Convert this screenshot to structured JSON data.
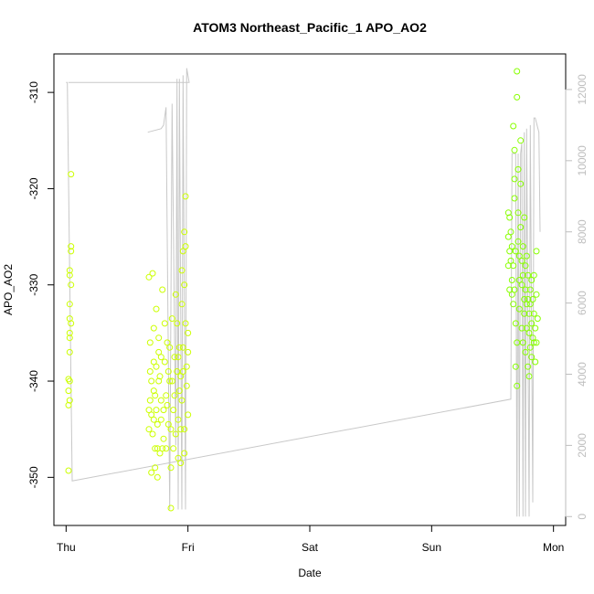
{
  "chart_data": {
    "type": "scatter",
    "title": "ATOM3 Northeast_Pacific_1 APO_AO2",
    "xlabel": "Date",
    "ylabel": "APO_AO2",
    "x_ticks": [
      "Thu",
      "Fri",
      "Sat",
      "Sun",
      "Mon"
    ],
    "x_tick_values": [
      0,
      1,
      2,
      3,
      4
    ],
    "xlim": [
      -0.1,
      4.1
    ],
    "ylim_left": [
      -355,
      -306
    ],
    "y_ticks_left": [
      -350,
      -340,
      -330,
      -320,
      -310
    ],
    "ylim_right": [
      -250,
      13000
    ],
    "y_ticks_right": [
      0,
      2000,
      4000,
      6000,
      8000,
      10000,
      12000
    ],
    "grid": false,
    "colors": {
      "line": "#c8c8c8",
      "right_axis": "#bebebe",
      "points_early": "#ccff00",
      "points_late": "#88ff00"
    },
    "altitude_line": [
      [
        0.0,
        12200
      ],
      [
        0.01,
        12200
      ],
      [
        0.05,
        1000
      ],
      [
        3.65,
        3300
      ],
      [
        3.66,
        10200
      ],
      [
        3.69,
        10200
      ],
      [
        3.7,
        0
      ],
      [
        3.71,
        10200
      ],
      [
        3.72,
        0
      ],
      [
        3.73,
        10200
      ],
      [
        3.74,
        10500
      ],
      [
        3.75,
        0
      ],
      [
        3.76,
        10800
      ],
      [
        3.77,
        0
      ],
      [
        3.78,
        10900
      ],
      [
        3.8,
        0
      ],
      [
        3.81,
        11000
      ],
      [
        3.83,
        400
      ],
      [
        3.84,
        11200
      ],
      [
        3.85,
        11200
      ],
      [
        3.88,
        10800
      ],
      [
        3.89,
        8000
      ]
    ],
    "altitude_line_fri": [
      [
        0.02,
        12200
      ],
      [
        1.0,
        12200
      ],
      [
        1.01,
        12200
      ],
      [
        0.99,
        12600
      ],
      [
        0.98,
        200
      ],
      [
        0.96,
        12400
      ],
      [
        0.95,
        200
      ],
      [
        0.93,
        12300
      ],
      [
        0.92,
        200
      ],
      [
        0.91,
        12300
      ],
      [
        0.9,
        2000
      ],
      [
        0.87,
        11600
      ],
      [
        0.85,
        200
      ],
      [
        0.82,
        11500
      ],
      [
        0.8,
        11000
      ],
      [
        0.78,
        10900
      ],
      [
        0.67,
        10800
      ]
    ],
    "series": [
      {
        "values": [
          [
            0.02,
            -339.8
          ],
          [
            0.02,
            -341.0
          ],
          [
            0.02,
            -342.5
          ],
          [
            0.03,
            -342.0
          ],
          [
            0.03,
            -337.0
          ],
          [
            0.03,
            -335.0
          ],
          [
            0.03,
            -333.5
          ],
          [
            0.03,
            -332.0
          ],
          [
            0.03,
            -329.0
          ],
          [
            0.03,
            -328.5
          ],
          [
            0.04,
            -326.5
          ],
          [
            0.04,
            -326.0
          ],
          [
            0.04,
            -330.0
          ],
          [
            0.04,
            -318.5
          ],
          [
            0.02,
            -349.3
          ],
          [
            0.03,
            -340.0
          ],
          [
            0.03,
            -335.5
          ],
          [
            0.04,
            -334.0
          ],
          [
            0.68,
            -329.2
          ],
          [
            0.68,
            -343.0
          ],
          [
            0.68,
            -345.0
          ],
          [
            0.69,
            -342.0
          ],
          [
            0.69,
            -339.0
          ],
          [
            0.69,
            -336.0
          ],
          [
            0.7,
            -340.0
          ],
          [
            0.7,
            -343.5
          ],
          [
            0.7,
            -349.5
          ],
          [
            0.71,
            -328.8
          ],
          [
            0.71,
            -345.5
          ],
          [
            0.72,
            -344.0
          ],
          [
            0.72,
            -341.0
          ],
          [
            0.72,
            -338.0
          ],
          [
            0.72,
            -334.5
          ],
          [
            0.73,
            -347.0
          ],
          [
            0.73,
            -349.0
          ],
          [
            0.73,
            -341.5
          ],
          [
            0.74,
            -338.5
          ],
          [
            0.74,
            -343.0
          ],
          [
            0.74,
            -332.5
          ],
          [
            0.75,
            -347.0
          ],
          [
            0.75,
            -350.0
          ],
          [
            0.75,
            -344.5
          ],
          [
            0.76,
            -340.0
          ],
          [
            0.76,
            -337.0
          ],
          [
            0.76,
            -335.5
          ],
          [
            0.77,
            -347.5
          ],
          [
            0.77,
            -339.5
          ],
          [
            0.78,
            -344.0
          ],
          [
            0.78,
            -342.0
          ],
          [
            0.78,
            -337.5
          ],
          [
            0.79,
            -330.5
          ],
          [
            0.79,
            -347.0
          ],
          [
            0.8,
            -343.0
          ],
          [
            0.8,
            -346.0
          ],
          [
            0.81,
            -338.0
          ],
          [
            0.81,
            -334.0
          ],
          [
            0.82,
            -341.5
          ],
          [
            0.82,
            -347.0
          ],
          [
            0.83,
            -336.0
          ],
          [
            0.83,
            -342.5
          ],
          [
            0.84,
            -339.0
          ],
          [
            0.84,
            -344.5
          ],
          [
            0.85,
            -336.5
          ],
          [
            0.85,
            -340.0
          ],
          [
            0.86,
            -345.0
          ],
          [
            0.86,
            -349.0
          ],
          [
            0.86,
            -353.2
          ],
          [
            0.87,
            -333.5
          ],
          [
            0.87,
            -340.0
          ],
          [
            0.88,
            -343.0
          ],
          [
            0.88,
            -347.0
          ],
          [
            0.89,
            -337.5
          ],
          [
            0.89,
            -341.5
          ],
          [
            0.9,
            -345.5
          ],
          [
            0.9,
            -331.0
          ],
          [
            0.91,
            -339.0
          ],
          [
            0.91,
            -334.0
          ],
          [
            0.92,
            -344.0
          ],
          [
            0.92,
            -337.5
          ],
          [
            0.92,
            -348.0
          ],
          [
            0.93,
            -341.0
          ],
          [
            0.93,
            -336.5
          ],
          [
            0.94,
            -345.0
          ],
          [
            0.94,
            -339.5
          ],
          [
            0.95,
            -328.5
          ],
          [
            0.95,
            -332.0
          ],
          [
            0.95,
            -342.0
          ],
          [
            0.96,
            -326.5
          ],
          [
            0.96,
            -336.5
          ],
          [
            0.96,
            -339.0
          ],
          [
            0.97,
            -330.0
          ],
          [
            0.97,
            -345.0
          ],
          [
            0.97,
            -324.5
          ],
          [
            0.98,
            -334.0
          ],
          [
            0.98,
            -326.0
          ],
          [
            0.98,
            -320.8
          ],
          [
            0.99,
            -338.5
          ],
          [
            0.99,
            -340.5
          ],
          [
            1.0,
            -335.0
          ],
          [
            1.0,
            -343.5
          ],
          [
            1.0,
            -337.0
          ],
          [
            0.97,
            -347.5
          ],
          [
            0.94,
            -348.5
          ]
        ]
      },
      {
        "values": [
          [
            3.63,
            -322.5
          ],
          [
            3.63,
            -325.0
          ],
          [
            3.63,
            -328.0
          ],
          [
            3.64,
            -326.5
          ],
          [
            3.64,
            -323.0
          ],
          [
            3.64,
            -330.5
          ],
          [
            3.65,
            -324.5
          ],
          [
            3.65,
            -327.5
          ],
          [
            3.66,
            -329.5
          ],
          [
            3.66,
            -331.0
          ],
          [
            3.66,
            -326.0
          ],
          [
            3.67,
            -332.0
          ],
          [
            3.67,
            -328.0
          ],
          [
            3.67,
            -313.5
          ],
          [
            3.68,
            -316.0
          ],
          [
            3.68,
            -319.0
          ],
          [
            3.68,
            -321.0
          ],
          [
            3.68,
            -330.5
          ],
          [
            3.69,
            -326.5
          ],
          [
            3.69,
            -334.0
          ],
          [
            3.69,
            -338.5
          ],
          [
            3.7,
            -336.0
          ],
          [
            3.7,
            -340.5
          ],
          [
            3.7,
            -310.5
          ],
          [
            3.7,
            -307.8
          ],
          [
            3.71,
            -318.0
          ],
          [
            3.71,
            -322.5
          ],
          [
            3.71,
            -325.5
          ],
          [
            3.72,
            -329.5
          ],
          [
            3.72,
            -327.0
          ],
          [
            3.72,
            -332.5
          ],
          [
            3.73,
            -315.0
          ],
          [
            3.73,
            -319.5
          ],
          [
            3.73,
            -324.0
          ],
          [
            3.74,
            -327.5
          ],
          [
            3.74,
            -330.0
          ],
          [
            3.74,
            -334.5
          ],
          [
            3.75,
            -326.0
          ],
          [
            3.75,
            -329.0
          ],
          [
            3.75,
            -336.0
          ],
          [
            3.76,
            -331.5
          ],
          [
            3.76,
            -323.0
          ],
          [
            3.76,
            -333.0
          ],
          [
            3.77,
            -328.0
          ],
          [
            3.77,
            -330.5
          ],
          [
            3.77,
            -337.0
          ],
          [
            3.78,
            -327.0
          ],
          [
            3.78,
            -332.0
          ],
          [
            3.78,
            -334.5
          ],
          [
            3.79,
            -329.0
          ],
          [
            3.79,
            -331.5
          ],
          [
            3.79,
            -338.5
          ],
          [
            3.8,
            -333.0
          ],
          [
            3.8,
            -335.0
          ],
          [
            3.8,
            -339.5
          ],
          [
            3.81,
            -330.5
          ],
          [
            3.81,
            -336.5
          ],
          [
            3.81,
            -332.0
          ],
          [
            3.82,
            -334.0
          ],
          [
            3.82,
            -337.5
          ],
          [
            3.82,
            -329.5
          ],
          [
            3.83,
            -335.5
          ],
          [
            3.83,
            -331.5
          ],
          [
            3.84,
            -336.0
          ],
          [
            3.84,
            -333.0
          ],
          [
            3.84,
            -329.0
          ],
          [
            3.85,
            -334.5
          ],
          [
            3.85,
            -338.0
          ],
          [
            3.86,
            -331.0
          ],
          [
            3.86,
            -336.0
          ],
          [
            3.86,
            -326.5
          ],
          [
            3.87,
            -333.5
          ]
        ]
      }
    ]
  }
}
